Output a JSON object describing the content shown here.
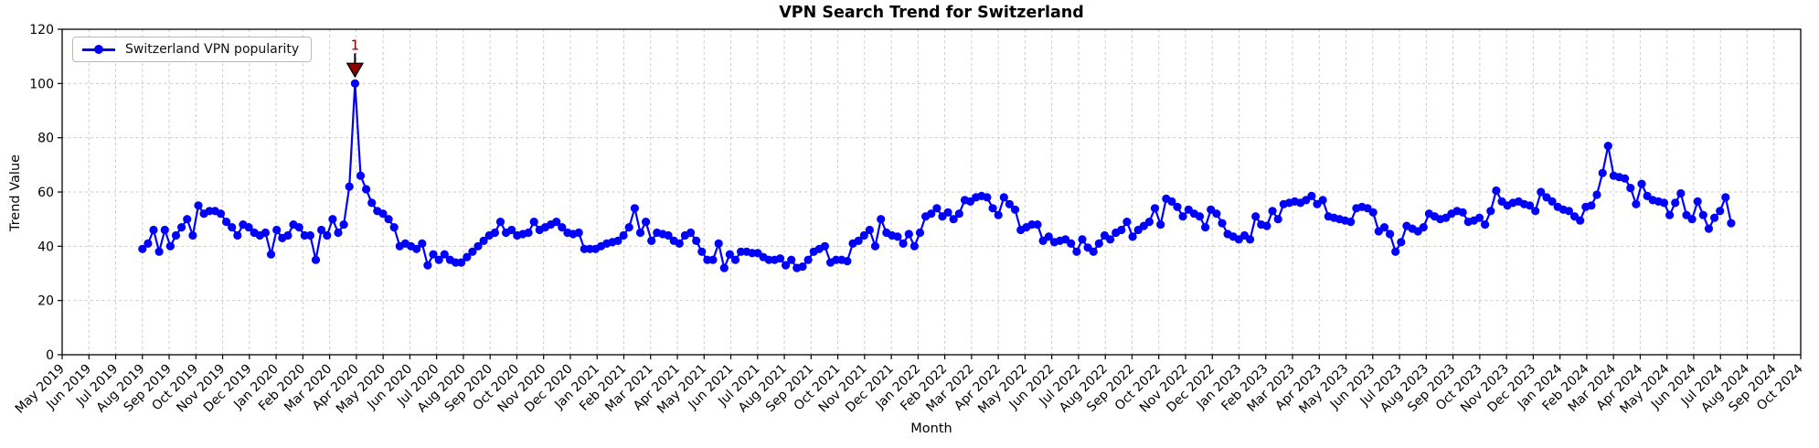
{
  "chart_data": {
    "type": "line",
    "title": "VPN Search Trend for Switzerland",
    "xlabel": "Month",
    "ylabel": "Trend Value",
    "legend_label": "Switzerland VPN popularity",
    "legend_position": "upper left",
    "grid": true,
    "line_color": "#0000FF",
    "marker": "circle",
    "ylim": [
      0,
      120
    ],
    "yticks": [
      0,
      20,
      40,
      60,
      80,
      100,
      120
    ],
    "x_tick_labels": [
      "May 2019",
      "Jun 2019",
      "Jul 2019",
      "Aug 2019",
      "Sep 2019",
      "Oct 2019",
      "Nov 2019",
      "Dec 2019",
      "Jan 2020",
      "Feb 2020",
      "Mar 2020",
      "Apr 2020",
      "May 2020",
      "Jun 2020",
      "Jul 2020",
      "Aug 2020",
      "Sep 2020",
      "Oct 2020",
      "Nov 2020",
      "Dec 2020",
      "Jan 2021",
      "Feb 2021",
      "Mar 2021",
      "Apr 2021",
      "May 2021",
      "Jun 2021",
      "Jul 2021",
      "Aug 2021",
      "Sep 2021",
      "Oct 2021",
      "Nov 2021",
      "Dec 2021",
      "Jan 2022",
      "Feb 2022",
      "Mar 2022",
      "Apr 2022",
      "May 2022",
      "Jun 2022",
      "Jul 2022",
      "Aug 2022",
      "Sep 2022",
      "Oct 2022",
      "Nov 2022",
      "Dec 2022",
      "Jan 2023",
      "Feb 2023",
      "Mar 2023",
      "Apr 2023",
      "May 2023",
      "Jun 2023",
      "Jul 2023",
      "Aug 2023",
      "Sep 2023",
      "Oct 2023",
      "Nov 2023",
      "Dec 2023",
      "Jan 2024",
      "Feb 2024",
      "Mar 2024",
      "Apr 2024",
      "May 2024",
      "Jun 2024",
      "Jul 2024",
      "Aug 2024",
      "Sep 2024",
      "Oct 2024"
    ],
    "x_start_month_index": 3.0,
    "x_end_month_index": 62.4,
    "series": [
      {
        "name": "Switzerland VPN popularity",
        "values": [
          39,
          41,
          46,
          38,
          46,
          40,
          44,
          47,
          50,
          44,
          55,
          52,
          53,
          53,
          52,
          49,
          47,
          44,
          48,
          47,
          45,
          44,
          45,
          37,
          46,
          43,
          44,
          48,
          47,
          44,
          44,
          35,
          46,
          44,
          50,
          45,
          48,
          62,
          100,
          66,
          61,
          56,
          53,
          52,
          50,
          47,
          40,
          41,
          40,
          39,
          41,
          33,
          37,
          35,
          37,
          35,
          34,
          34,
          36,
          38,
          40,
          42,
          44,
          45,
          49,
          45,
          46,
          44,
          44.5,
          45,
          49,
          46,
          47,
          48,
          49,
          47,
          45,
          44.5,
          45,
          39,
          39,
          39,
          40,
          41,
          41.5,
          42,
          44,
          47,
          54,
          45,
          49,
          42,
          45,
          44.5,
          44,
          42,
          41,
          44,
          45,
          42,
          38,
          35,
          35,
          41,
          32,
          37,
          35,
          38,
          38,
          37.5,
          37.5,
          36,
          35,
          35,
          35.5,
          33,
          35,
          32,
          32.5,
          35,
          38,
          39,
          40,
          34,
          35,
          35,
          34.5,
          41,
          42,
          44,
          46,
          40,
          50,
          45,
          44,
          43.5,
          41,
          44.5,
          40,
          45,
          51,
          52,
          54,
          51,
          52.5,
          50,
          52,
          57,
          56.5,
          58,
          58.5,
          58,
          54,
          51.5,
          58,
          55.5,
          53.5,
          46,
          47,
          48,
          48,
          42,
          43.5,
          41.5,
          42,
          42.5,
          41,
          38,
          42.5,
          39.5,
          38,
          41,
          44,
          42.5,
          45,
          46,
          49,
          43.5,
          46,
          47.5,
          49,
          54,
          48,
          57.5,
          56.5,
          54.5,
          51,
          53.5,
          52,
          51,
          47,
          53.5,
          52,
          48.5,
          44.5,
          43.5,
          42.5,
          44,
          42.5,
          51,
          48,
          47.5,
          53,
          50,
          55.5,
          56,
          56.5,
          56,
          57,
          58.5,
          55.5,
          57,
          51,
          50.5,
          50,
          49.5,
          49,
          54,
          54.5,
          54,
          52.5,
          45.5,
          47,
          44.5,
          38,
          41.5,
          47.5,
          46.5,
          45.5,
          47,
          52,
          51,
          50,
          50.5,
          52,
          53,
          52.5,
          49,
          49.5,
          50.5,
          48,
          53,
          60.5,
          56.5,
          55,
          56,
          56.5,
          55.5,
          55,
          53,
          60,
          58,
          56.5,
          54.5,
          53.5,
          53,
          51,
          49.5,
          54.5,
          55,
          59,
          67,
          77,
          66,
          65.5,
          65,
          61.5,
          55.5,
          63,
          58.5,
          57,
          56.5,
          56,
          51.5,
          56,
          59.5,
          51.5,
          50,
          56.5,
          51.5,
          46.5,
          50.5,
          53,
          58,
          48.5
        ]
      }
    ],
    "annotation": {
      "label": "1",
      "point_index": 38,
      "value": 100,
      "color": "#8B0000",
      "marker": "triangle-down"
    }
  }
}
